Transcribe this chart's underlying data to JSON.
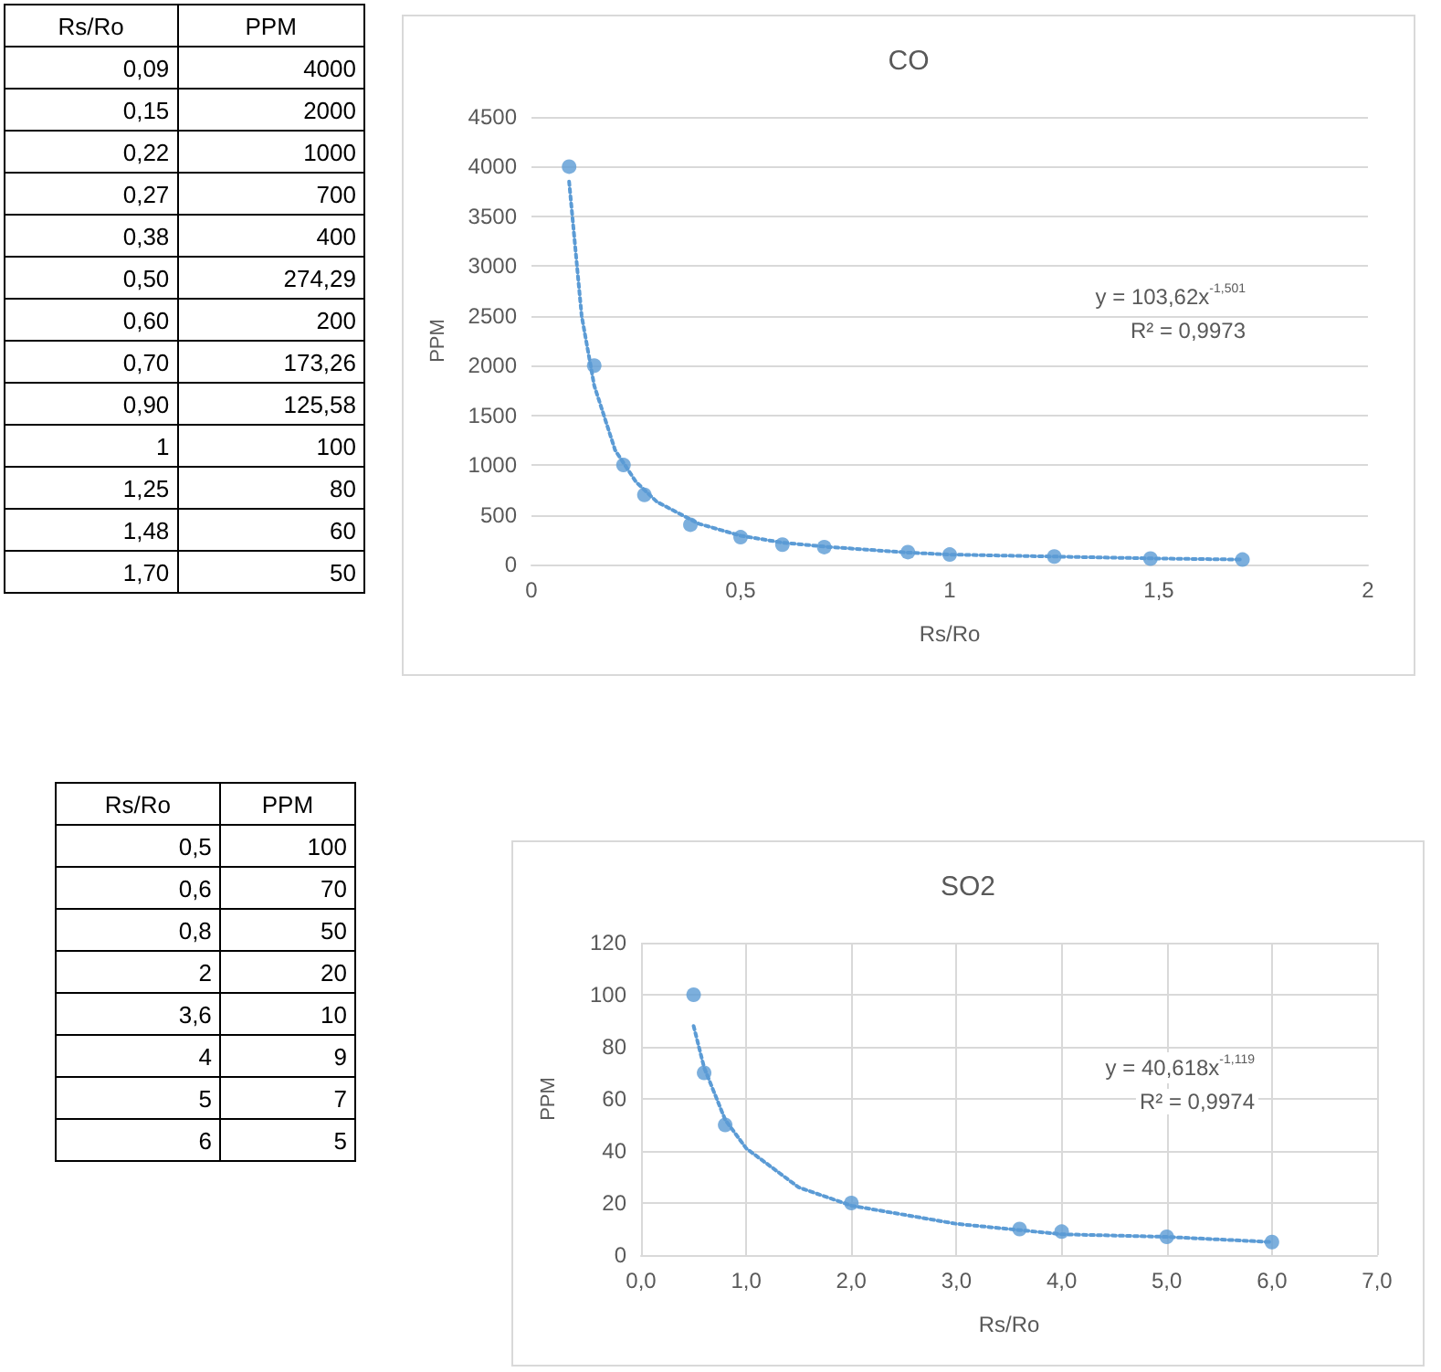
{
  "chart_data": [
    {
      "type": "other",
      "xlabel": "Rs/Ro",
      "ylabel": "PPM",
      "categories": [
        "0,09",
        "0,15",
        "0,22",
        "0,27",
        "0,38",
        "0,50",
        "0,60",
        "0,70",
        "0,90",
        "1",
        "1,25",
        "1,48",
        "1,70"
      ],
      "value_labels": [
        "4000",
        "2000",
        "1000",
        "700",
        "400",
        "274,29",
        "200",
        "173,26",
        "125,58",
        "100",
        "80",
        "60",
        "50"
      ]
    },
    {
      "type": "scatter",
      "title": "CO",
      "xlabel": "Rs/Ro",
      "ylabel": "PPM",
      "x": [
        0.09,
        0.15,
        0.22,
        0.27,
        0.38,
        0.5,
        0.6,
        0.7,
        0.9,
        1,
        1.25,
        1.48,
        1.7
      ],
      "xlim": [
        0,
        2
      ],
      "xticks": [
        0,
        {
          "value": 0.5,
          "label": "0,5"
        },
        1,
        {
          "value": 1.5,
          "label": "1,5"
        },
        2
      ],
      "ylim": [
        0,
        4500
      ],
      "yticks": [
        0,
        500,
        1000,
        1500,
        2000,
        2500,
        3000,
        3500,
        4000,
        4500
      ],
      "grid": "y",
      "annotations": [
        "y = 103,62x$^{-1,501}$",
        "R² = 0,9973"
      ],
      "series": [
        {
          "type": "scatter",
          "color": "#5b9bd5",
          "marker": "circle",
          "values": [
            4000,
            2000,
            1000,
            700,
            400,
            275,
            200,
            175,
            125,
            100,
            80,
            60,
            50
          ]
        },
        {
          "type": "line",
          "color": "#5b9bd5",
          "line_style": "dotted",
          "marker": "none",
          "x": [
            0.09,
            0.12,
            0.15,
            0.2,
            0.25,
            0.3,
            0.4,
            0.5,
            0.6,
            0.7,
            0.8,
            0.9,
            1,
            1.25,
            1.5,
            1.7
          ],
          "values": [
            3850,
            2500,
            1800,
            1150,
            830,
            630,
            410,
            290,
            220,
            180,
            150,
            120,
            100,
            80,
            60,
            50
          ]
        }
      ]
    },
    {
      "type": "other",
      "xlabel": "Rs/Ro",
      "ylabel": "PPM",
      "categories": [
        "0,5",
        "0,6",
        "0,8",
        "2",
        "3,6",
        "4",
        "5",
        "6"
      ],
      "value_labels": [
        "100",
        "70",
        "50",
        "20",
        "10",
        "9",
        "7",
        "5"
      ]
    },
    {
      "type": "scatter",
      "title": "SO2",
      "xlabel": "Rs/Ro",
      "ylabel": "PPM",
      "x": [
        0.5,
        0.6,
        0.8,
        2,
        3.6,
        4,
        5,
        6
      ],
      "xlim": [
        0,
        7
      ],
      "xticks": [
        {
          "value": 0,
          "label": "0,0"
        },
        {
          "value": 1,
          "label": "1,0"
        },
        {
          "value": 2,
          "label": "2,0"
        },
        {
          "value": 3,
          "label": "3,0"
        },
        {
          "value": 4,
          "label": "4,0"
        },
        {
          "value": 5,
          "label": "5,0"
        },
        {
          "value": 6,
          "label": "6,0"
        },
        {
          "value": 7,
          "label": "7,0"
        }
      ],
      "ylim": [
        0,
        120
      ],
      "yticks": [
        0,
        20,
        40,
        60,
        80,
        100,
        120
      ],
      "grid": true,
      "annotations": [
        "y = 40,618x$^{-1,119}$",
        "R² = 0,9974"
      ],
      "series": [
        {
          "type": "scatter",
          "color": "#5b9bd5",
          "marker": "circle",
          "values": [
            100,
            70,
            50,
            20,
            10,
            9,
            7,
            5
          ]
        },
        {
          "type": "line",
          "color": "#5b9bd5",
          "line_style": "dotted",
          "marker": "none",
          "x": [
            0.5,
            0.6,
            0.8,
            1,
            1.5,
            2,
            3,
            4,
            5,
            6
          ],
          "values": [
            88,
            72,
            52,
            41,
            26,
            19,
            12,
            8,
            7,
            5
          ]
        }
      ]
    }
  ]
}
